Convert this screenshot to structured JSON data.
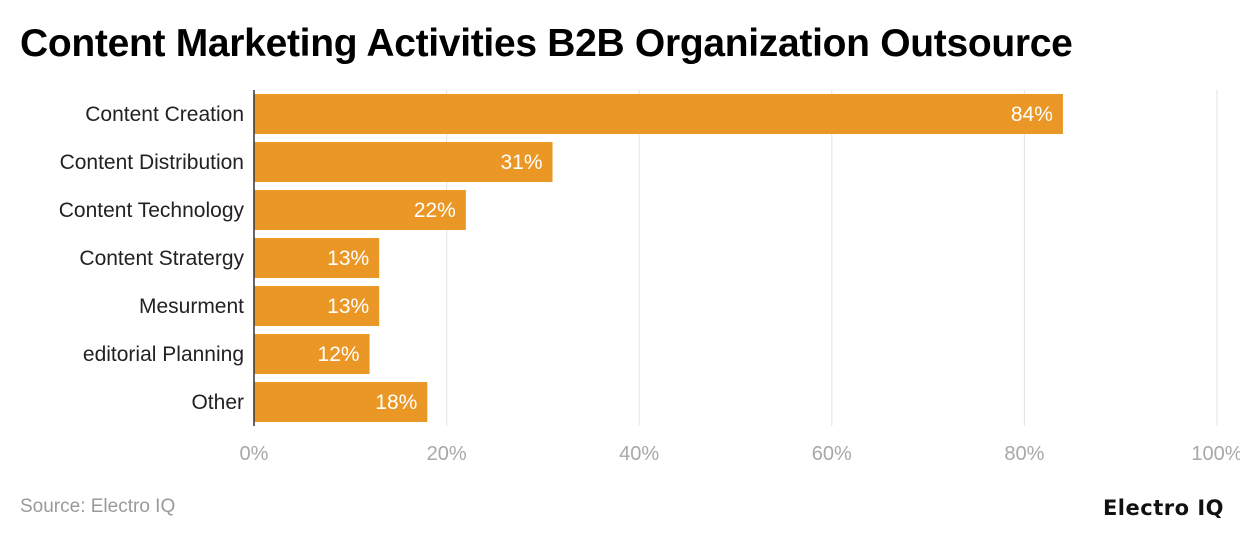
{
  "chart_data": {
    "type": "bar",
    "orientation": "horizontal",
    "title": "Content Marketing Activities B2B Organization Outsource",
    "categories": [
      "Content Creation",
      "Content Distribution",
      "Content Technology",
      "Content Stratergy",
      "Mesurment",
      "editorial Planning",
      "Other"
    ],
    "values": [
      84,
      31,
      22,
      13,
      13,
      12,
      18
    ],
    "value_labels": [
      "84%",
      "31%",
      "22%",
      "13%",
      "13%",
      "12%",
      "18%"
    ],
    "xlim": [
      0,
      100
    ],
    "x_ticks": [
      0,
      20,
      40,
      60,
      80,
      100
    ],
    "x_tick_labels": [
      "0%",
      "20%",
      "40%",
      "60%",
      "80%",
      "100%"
    ],
    "grid": "vertical",
    "bar_color": "#EA9726"
  },
  "footer": {
    "source": "Source: Electro IQ",
    "brand": "Electro IQ"
  }
}
